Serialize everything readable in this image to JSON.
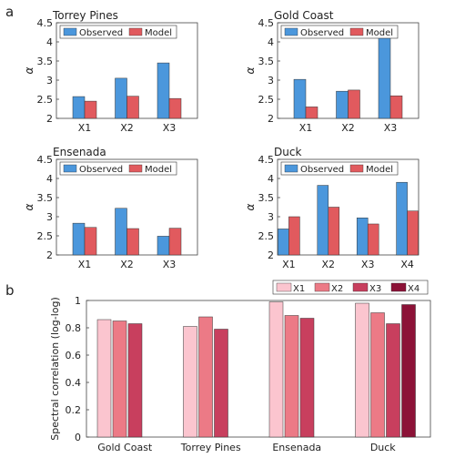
{
  "panel_labels": [
    "a",
    "b"
  ],
  "colors": {
    "observed": "#4b97dc",
    "model": "#e15a5e",
    "X1": "#fbc5cf",
    "X2": "#ec7a86",
    "X3": "#c83f5e",
    "X4": "#8c1237"
  },
  "chart_data": [
    {
      "type": "bar",
      "title": "Torrey Pines",
      "categories": [
        "X1",
        "X2",
        "X3"
      ],
      "series": [
        {
          "name": "Observed",
          "values": [
            2.57,
            3.05,
            3.45
          ]
        },
        {
          "name": "Model",
          "values": [
            2.45,
            2.58,
            2.52
          ]
        }
      ],
      "ylabel": "α",
      "ylim": [
        2,
        4.5
      ],
      "yticks": [
        "2",
        "2.5",
        "3",
        "3.5",
        "4",
        "4.5"
      ],
      "legend": "top"
    },
    {
      "type": "bar",
      "title": "Gold Coast",
      "categories": [
        "X1",
        "X2",
        "X3"
      ],
      "series": [
        {
          "name": "Observed",
          "values": [
            3.02,
            2.71,
            4.18
          ]
        },
        {
          "name": "Model",
          "values": [
            2.3,
            2.74,
            2.59
          ]
        }
      ],
      "ylabel": "α",
      "ylim": [
        2,
        4.5
      ],
      "yticks": [
        "2",
        "2.5",
        "3",
        "3.5",
        "4",
        "4.5"
      ],
      "legend": "top"
    },
    {
      "type": "bar",
      "title": "Ensenada",
      "categories": [
        "X1",
        "X2",
        "X3"
      ],
      "series": [
        {
          "name": "Observed",
          "values": [
            2.83,
            3.22,
            2.49
          ]
        },
        {
          "name": "Model",
          "values": [
            2.72,
            2.69,
            2.7
          ]
        }
      ],
      "ylabel": "α",
      "ylim": [
        2,
        4.5
      ],
      "yticks": [
        "2",
        "2.5",
        "3",
        "3.5",
        "4",
        "4.5"
      ],
      "legend": "top"
    },
    {
      "type": "bar",
      "title": "Duck",
      "categories": [
        "X1",
        "X2",
        "X3",
        "X4"
      ],
      "series": [
        {
          "name": "Observed",
          "values": [
            2.68,
            3.82,
            2.97,
            3.9
          ]
        },
        {
          "name": "Model",
          "values": [
            3.0,
            3.25,
            2.81,
            3.15
          ]
        }
      ],
      "ylabel": "α",
      "ylim": [
        2,
        4.5
      ],
      "yticks": [
        "2",
        "2.5",
        "3",
        "3.5",
        "4",
        "4.5"
      ],
      "legend": "top"
    },
    {
      "type": "bar",
      "categories": [
        "Gold Coast",
        "Torrey Pines",
        "Ensenada",
        "Duck"
      ],
      "series": [
        {
          "name": "X1",
          "values": [
            0.86,
            0.81,
            0.99,
            0.98
          ]
        },
        {
          "name": "X2",
          "values": [
            0.85,
            0.88,
            0.89,
            0.91
          ]
        },
        {
          "name": "X3",
          "values": [
            0.83,
            0.79,
            0.87,
            0.83
          ]
        },
        {
          "name": "X4",
          "values": [
            null,
            null,
            null,
            0.97
          ]
        }
      ],
      "ylabel": "Spectral correlation (log-log)",
      "ylim": [
        0,
        1
      ],
      "yticks": [
        "0",
        "0.2",
        "0.4",
        "0.6",
        "0.8",
        "1"
      ],
      "legend": "top-right"
    }
  ]
}
